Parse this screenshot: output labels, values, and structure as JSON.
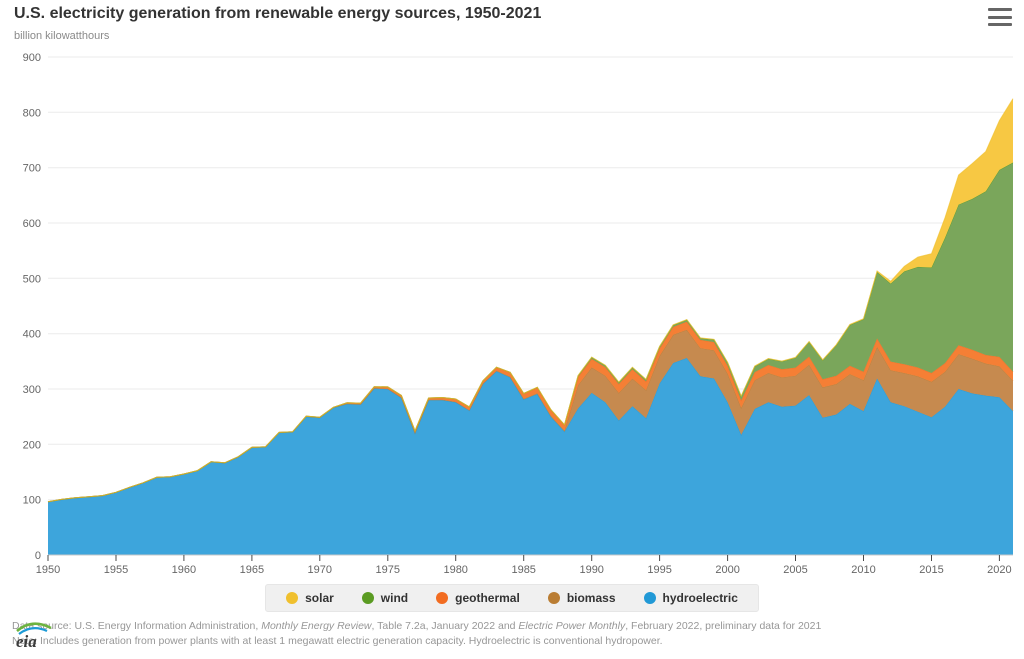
{
  "header": {
    "title": "U.S. electricity generation from renewable energy sources, 1950-2021",
    "subtitle": "billion kilowatthours",
    "menu_icon": "hamburger-menu-icon"
  },
  "chart_data": {
    "type": "area",
    "stacked": true,
    "title": "U.S. electricity generation from renewable energy sources, 1950-2021",
    "ylabel": "billion kilowatthours",
    "xlabel": "",
    "ylim": [
      0,
      900
    ],
    "ytick_step": 100,
    "xlim": [
      1950,
      2021
    ],
    "xtick_step": 5,
    "grid": true,
    "legend_position": "bottom",
    "legend_order": [
      "solar",
      "wind",
      "geothermal",
      "biomass",
      "hydroelectric"
    ],
    "years": [
      1950,
      1951,
      1952,
      1953,
      1954,
      1955,
      1956,
      1957,
      1958,
      1959,
      1960,
      1961,
      1962,
      1963,
      1964,
      1965,
      1966,
      1967,
      1968,
      1969,
      1970,
      1971,
      1972,
      1973,
      1974,
      1975,
      1976,
      1977,
      1978,
      1979,
      1980,
      1981,
      1982,
      1983,
      1984,
      1985,
      1986,
      1987,
      1988,
      1989,
      1990,
      1991,
      1992,
      1993,
      1994,
      1995,
      1996,
      1997,
      1998,
      1999,
      2000,
      2001,
      2002,
      2003,
      2004,
      2005,
      2006,
      2007,
      2008,
      2009,
      2010,
      2011,
      2012,
      2013,
      2014,
      2015,
      2016,
      2017,
      2018,
      2019,
      2020,
      2021
    ],
    "series": [
      {
        "name": "hydroelectric",
        "area_color": "#3DA5DC",
        "legend_color": "#2199D6",
        "values": [
          96,
          100,
          103,
          105,
          107,
          113,
          122,
          130,
          140,
          141,
          146,
          152,
          168,
          166,
          177,
          194,
          195,
          221,
          222,
          250,
          248,
          266,
          273,
          272,
          301,
          300,
          284,
          220,
          280,
          280,
          276,
          261,
          309,
          332,
          321,
          281,
          291,
          250,
          223,
          265,
          293,
          276,
          243,
          269,
          247,
          310,
          347,
          356,
          323,
          319,
          276,
          217,
          264,
          276,
          268,
          270,
          289,
          248,
          254,
          273,
          260,
          319,
          276,
          269,
          259,
          249,
          268,
          300,
          292,
          288,
          285,
          260
        ]
      },
      {
        "name": "biomass",
        "area_color": "#C68A4F",
        "legend_color": "#BA7D33",
        "values": [
          0.4,
          0.4,
          0.4,
          0.4,
          0.4,
          0.4,
          0.4,
          0.4,
          0.4,
          0.4,
          0.4,
          0.4,
          0.4,
          0.4,
          0.4,
          0.4,
          0.4,
          0.4,
          0.4,
          0.4,
          0.5,
          0.5,
          0.5,
          0.6,
          0.6,
          0.6,
          0.7,
          0.7,
          0.7,
          0.8,
          0.8,
          0.9,
          1.0,
          1.2,
          1.4,
          1.5,
          1.6,
          1.7,
          1.8,
          42,
          46,
          48,
          50,
          50,
          51,
          50,
          51,
          51,
          51,
          51,
          52,
          49,
          52,
          53,
          53,
          54,
          55,
          55,
          55,
          54,
          56,
          57,
          58,
          60,
          64,
          64,
          63,
          63,
          63,
          58,
          56,
          55
        ]
      },
      {
        "name": "geothermal",
        "area_color": "#F57F35",
        "legend_color": "#F26C21",
        "values": [
          0,
          0,
          0,
          0,
          0,
          0,
          0,
          0,
          0,
          0,
          0.03,
          0.1,
          0.1,
          0.3,
          0.3,
          0.2,
          0.2,
          0.2,
          0.3,
          0.4,
          0.5,
          0.5,
          1.5,
          2.0,
          2.5,
          3.2,
          3.6,
          3.6,
          3.0,
          3.9,
          5.1,
          5.7,
          4.8,
          6.1,
          7.7,
          9.3,
          10.3,
          10.8,
          10.3,
          15.0,
          15.4,
          15.6,
          16.1,
          16.8,
          15.5,
          13.4,
          14.3,
          14.7,
          14.8,
          14.8,
          14.1,
          13.7,
          14.5,
          14.4,
          14.8,
          14.7,
          14.6,
          14.6,
          14.8,
          15.0,
          15.2,
          15.3,
          15.6,
          15.8,
          15.9,
          15.9,
          15.8,
          15.9,
          15.9,
          15.5,
          17.0,
          16.2
        ]
      },
      {
        "name": "wind",
        "area_color": "#7AA65B",
        "legend_color": "#5A9B22",
        "values": [
          0,
          0,
          0,
          0,
          0,
          0,
          0,
          0,
          0,
          0,
          0,
          0,
          0,
          0,
          0,
          0,
          0,
          0,
          0,
          0,
          0,
          0,
          0,
          0,
          0,
          0,
          0,
          0,
          0,
          0,
          0,
          0,
          0,
          0.03,
          0.07,
          0.01,
          0.04,
          0.1,
          0.1,
          2.1,
          2.8,
          2.9,
          2.9,
          3.0,
          3.4,
          3.2,
          3.2,
          3.3,
          3.0,
          4.5,
          5.6,
          6.7,
          10.4,
          11.2,
          14.1,
          17.8,
          26.6,
          34.5,
          55.4,
          73.9,
          94.7,
          120.2,
          140.8,
          167.8,
          181.7,
          190.7,
          226.5,
          254.3,
          272.7,
          295.9,
          337.9,
          378.2
        ]
      },
      {
        "name": "solar",
        "area_color": "#F7C843",
        "legend_color": "#F0C02E",
        "values": [
          0,
          0,
          0,
          0,
          0,
          0,
          0,
          0,
          0,
          0,
          0,
          0,
          0,
          0,
          0,
          0,
          0,
          0,
          0,
          0,
          0,
          0,
          0,
          0,
          0,
          0,
          0,
          0,
          0,
          0,
          0,
          0,
          0,
          0,
          0.01,
          0.01,
          0.1,
          0.1,
          0.1,
          0.3,
          0.4,
          0.5,
          0.5,
          0.5,
          0.5,
          0.5,
          0.5,
          0.5,
          0.5,
          0.5,
          0.5,
          0.5,
          0.6,
          0.5,
          0.6,
          0.6,
          0.5,
          0.6,
          0.9,
          0.9,
          1.2,
          1.8,
          4.3,
          9.0,
          17.7,
          24.9,
          36.1,
          53.3,
          63.8,
          71.9,
          89.2,
          115.3
        ]
      }
    ]
  },
  "footer": {
    "logo_text": "eia",
    "source_line": [
      {
        "text": "Data source: U.S. Energy Information Administration, ",
        "italic": false
      },
      {
        "text": "Monthly Energy Review",
        "italic": true
      },
      {
        "text": ", Table 7.2a, January 2022 and ",
        "italic": false
      },
      {
        "text": "Electric Power Monthly",
        "italic": true
      },
      {
        "text": ", February 2022, preliminary data for 2021",
        "italic": false
      }
    ],
    "note_line": [
      {
        "text": "Note: Includes generation from power plants with at least 1 megawatt electric generation capacity. Hydroelectric is conventional hydropower.",
        "italic": false
      }
    ]
  }
}
